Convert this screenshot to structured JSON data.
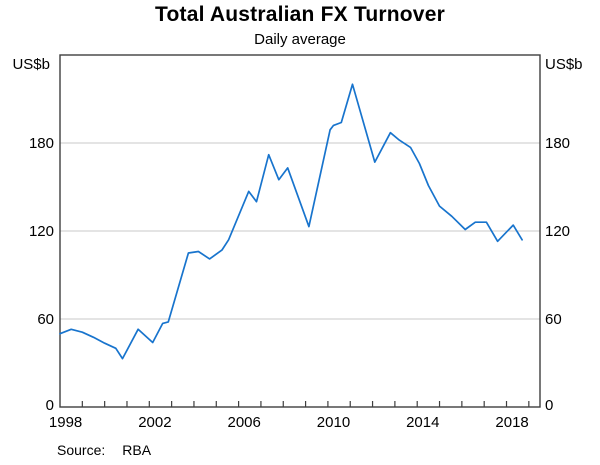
{
  "header": {
    "title": "Total Australian FX Turnover",
    "subtitle": "Daily average"
  },
  "axes": {
    "unit_left": "US$b",
    "unit_right": "US$b"
  },
  "source": {
    "label": "Source:",
    "value": "RBA"
  },
  "colors": {
    "line": "#1874cd",
    "grid": "#c9c9c9",
    "axis": "#3f3f3f"
  },
  "chart_data": {
    "type": "line",
    "title": "Total Australian FX Turnover",
    "subtitle": "Daily average",
    "xlabel": "",
    "ylabel": "US$b",
    "ylim": [
      0,
      240
    ],
    "yticks": [
      0,
      60,
      120,
      180
    ],
    "xlim": [
      1998,
      2019.5
    ],
    "xtick_label_years": [
      1998,
      2002,
      2006,
      2010,
      2014,
      2018
    ],
    "xtick_minor_years_start": 1999,
    "xtick_minor_years_end": 2019,
    "grid": "horizontal",
    "legend": "none",
    "source": "RBA",
    "series": [
      {
        "name": "Total Australian FX turnover, daily average (US$b)",
        "points": [
          [
            1998.0,
            50
          ],
          [
            1998.5,
            53
          ],
          [
            1999.0,
            51
          ],
          [
            1999.5,
            47.5
          ],
          [
            2000.0,
            43.5
          ],
          [
            2000.5,
            40
          ],
          [
            2000.8,
            33
          ],
          [
            2001.5,
            53
          ],
          [
            2002.15,
            44
          ],
          [
            2002.6,
            57
          ],
          [
            2002.85,
            58
          ],
          [
            2003.75,
            105
          ],
          [
            2004.2,
            106
          ],
          [
            2004.7,
            101
          ],
          [
            2005.25,
            107
          ],
          [
            2005.55,
            114
          ],
          [
            2006.45,
            147
          ],
          [
            2006.8,
            140
          ],
          [
            2007.35,
            172
          ],
          [
            2007.8,
            155
          ],
          [
            2008.2,
            163
          ],
          [
            2009.15,
            123
          ],
          [
            2010.1,
            189
          ],
          [
            2010.25,
            192
          ],
          [
            2010.6,
            194
          ],
          [
            2011.1,
            220
          ],
          [
            2012.1,
            167
          ],
          [
            2012.8,
            187
          ],
          [
            2013.2,
            182
          ],
          [
            2013.7,
            177
          ],
          [
            2014.1,
            166
          ],
          [
            2014.5,
            151
          ],
          [
            2015.0,
            137
          ],
          [
            2015.55,
            130
          ],
          [
            2016.15,
            121
          ],
          [
            2016.6,
            126
          ],
          [
            2017.1,
            126
          ],
          [
            2017.6,
            113
          ],
          [
            2018.3,
            124
          ],
          [
            2018.7,
            114
          ]
        ]
      }
    ]
  }
}
